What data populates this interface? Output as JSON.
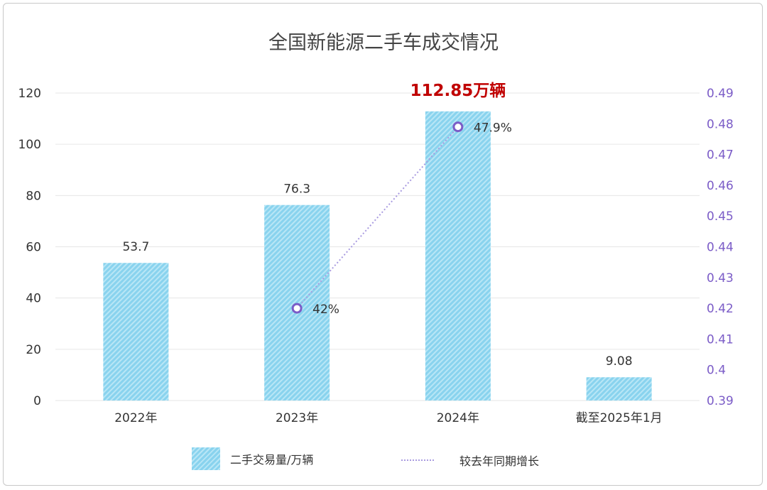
{
  "chart_data": {
    "type": "bar",
    "title": "全国新能源二手车成交情况",
    "categories": [
      "2022年",
      "2023年",
      "2024年",
      "截至2025年1月"
    ],
    "series": [
      {
        "name": "二手交易量/万辆",
        "type": "bar",
        "axis": "left",
        "values": [
          53.7,
          76.3,
          112.85,
          9.08
        ],
        "labels": [
          "53.7",
          "76.3",
          "",
          "9.08"
        ]
      },
      {
        "name": "较去年同期增长",
        "type": "line",
        "axis": "right",
        "points": [
          {
            "category": "2023年",
            "value": 0.42,
            "label": "42%"
          },
          {
            "category": "2024年",
            "value": 0.479,
            "label": "47.9%"
          }
        ]
      }
    ],
    "highlight_label": "112.85万辆",
    "left_axis": {
      "ylim": [
        0,
        120
      ],
      "ticks": [
        "0",
        "20",
        "40",
        "60",
        "80",
        "100",
        "120"
      ]
    },
    "right_axis": {
      "ylim": [
        0.39,
        0.49
      ],
      "ticks": [
        "0.39",
        "0.4",
        "0.41",
        "0.42",
        "0.43",
        "0.44",
        "0.45",
        "0.46",
        "0.47",
        "0.48",
        "0.49"
      ]
    },
    "grid": true,
    "legend_position": "bottom",
    "colors": {
      "bar": "#89d3ee",
      "line": "#a99be0",
      "marker": "#7b5cc7",
      "highlight": "#c00000",
      "right_axis": "#7b5cc7"
    }
  }
}
